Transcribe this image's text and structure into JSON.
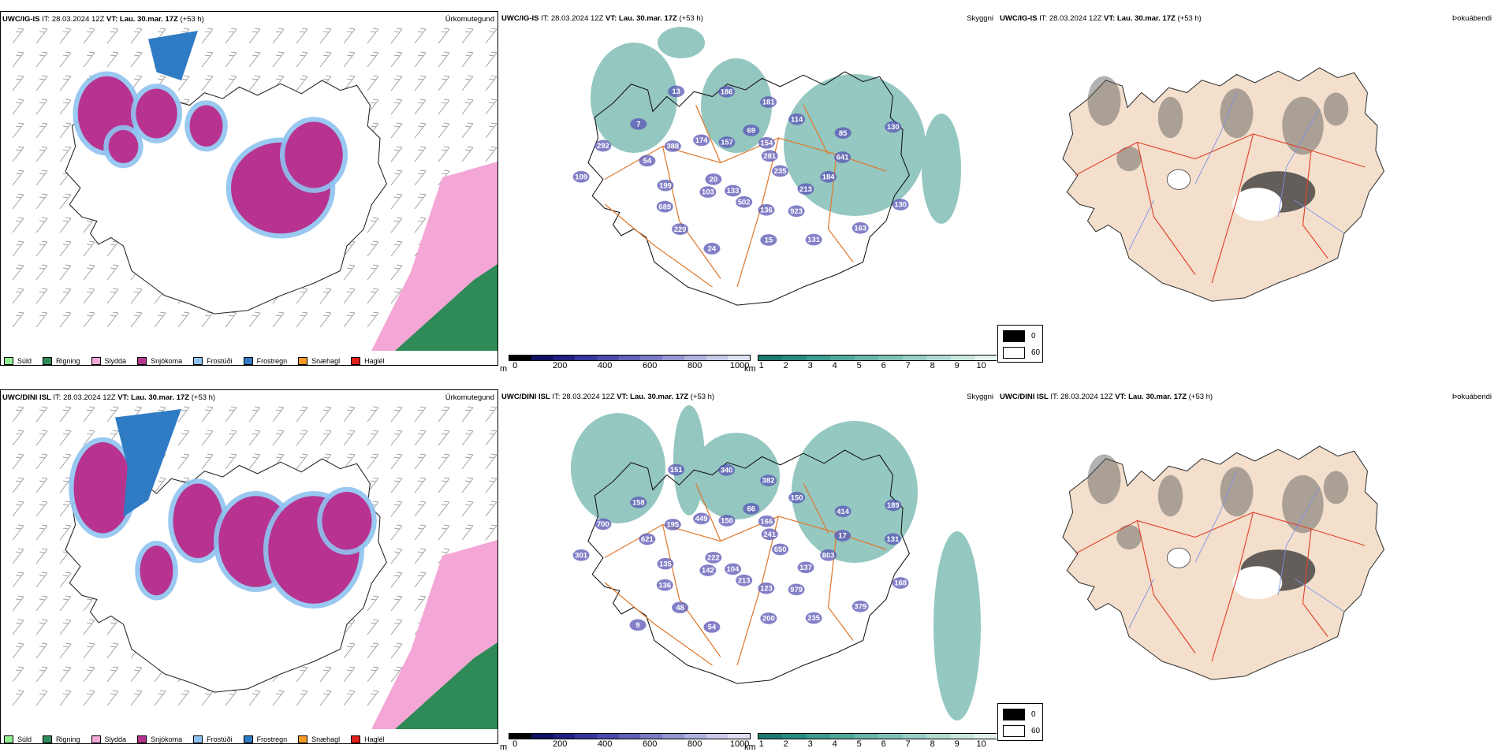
{
  "colors": {
    "sudld": "#90ee90",
    "rigning": "#2e8b57",
    "slydda": "#f4a7d6",
    "snjokoma": "#b7338f",
    "frostudi": "#8ec2f0",
    "frostregn": "#2f7bc4",
    "snaehagl": "#f59b25",
    "haglel": "#e0201b",
    "sea_teal": "#3d9a8e",
    "road": "#e07a30",
    "ice_white": "#ffffff",
    "land_beige": "#f3dfcc",
    "river_blue": "#7b8fe8",
    "road_red": "#e0442a"
  },
  "rows": [
    {
      "name": "row-ig-is",
      "model": "UWC/IG-IS",
      "it_label": "IT:",
      "it_value": "28.03.2024 12Z",
      "vt_label": "VT:",
      "vt_value": "Lau. 30.mar. 17Z",
      "lead": "(+53 h)",
      "precip_title": "Úrkomutegund",
      "cloud_title": "Skyggni",
      "fog_title": "Þokuábendi",
      "labels": [
        "235",
        "103",
        "69",
        "923",
        "54",
        "85",
        "24",
        "13",
        "130",
        "20",
        "154",
        "136",
        "388",
        "641",
        "229",
        "186",
        "163",
        "109",
        "281",
        "502",
        "174",
        "184",
        "689",
        "181",
        "131",
        "292",
        "130",
        "133",
        "157",
        "213",
        "199",
        "114",
        "15",
        "7"
      ]
    },
    {
      "name": "row-dini-isl",
      "model": "UWC/DINI ISL",
      "it_label": "IT:",
      "it_value": "28.03.2024 12Z",
      "vt_label": "VT:",
      "vt_value": "Lau. 30.mar. 17Z",
      "lead": "(+53 h)",
      "precip_title": "Úrkomutegund",
      "cloud_title": "Skyggni",
      "fog_title": "Þokuábendi",
      "labels": [
        "650",
        "142",
        "66",
        "979",
        "621",
        "414",
        "54",
        "151",
        "168",
        "222",
        "166",
        "123",
        "195",
        "17",
        "48",
        "340",
        "379",
        "301",
        "241",
        "213",
        "449",
        "803",
        "136",
        "382",
        "235",
        "700",
        "189",
        "104",
        "150",
        "137",
        "135",
        "150",
        "200",
        "158",
        "131",
        "9"
      ]
    }
  ],
  "precip_legend": [
    "Súld",
    "Rigning",
    "Slydda",
    "Snjókoma",
    "Frostúði",
    "Frostregn",
    "Snæhagl",
    "Haglél"
  ],
  "cloud_base": {
    "unit": "m",
    "ticks": [
      "0",
      "200",
      "400",
      "600",
      "800",
      "1000"
    ]
  },
  "visibility": {
    "unit": "km",
    "ticks": [
      "1",
      "2",
      "3",
      "4",
      "5",
      "6",
      "7",
      "8",
      "9",
      "10"
    ]
  },
  "fog_legend": {
    "black": "0",
    "white": "60"
  }
}
